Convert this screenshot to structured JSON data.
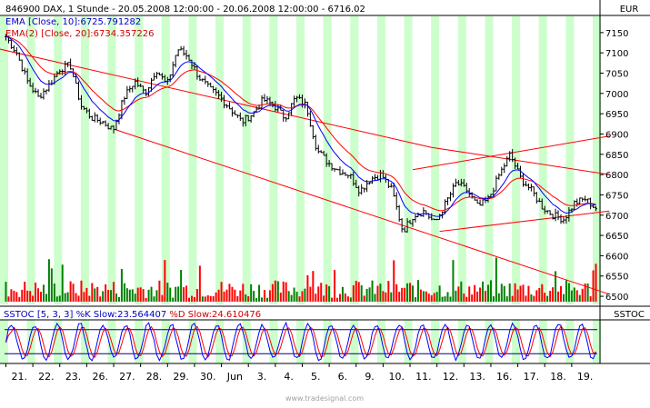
{
  "header": {
    "title": "846900 DAX, 1 Stunde - 20.05.2008 12:00:00 - 20.06.2008 12:00:00 - 6716.02",
    "currency": "EUR"
  },
  "indicators": {
    "ema10": "EMA [Close, 10]:6725.791282",
    "ema20": "EMA(2) [Close, 20]:6734.357226",
    "stoch_prefix": "SSTOC [5, 3, 3] ",
    "stoch_k": "%K Slow:23.564407",
    "stoch_d": " %D Slow:24.610476",
    "stoch_panel": "SSTOC"
  },
  "footer": {
    "watermark": "www.tradesignal.com"
  },
  "colors": {
    "background": "#ffffff",
    "day_band": "#ccffcc",
    "price": "#000000",
    "ema10": "#0000ff",
    "ema20": "#ff0000",
    "channel": "#ff0000",
    "stoch_k": "#0000ff",
    "stoch_d": "#ff0000",
    "volume_up": "#008000",
    "volume_down": "#ff0000",
    "label_blue": "#0000c0"
  },
  "chart_data": {
    "type": "line",
    "x_labels": [
      "21.",
      "22.",
      "23.",
      "26.",
      "27.",
      "28.",
      "29.",
      "30.",
      "Jun",
      "3.",
      "4.",
      "5.",
      "6.",
      "9.",
      "10.",
      "11.",
      "12.",
      "13.",
      "16.",
      "17.",
      "18.",
      "19."
    ],
    "y_ticks": [
      7150,
      7100,
      7050,
      7000,
      6950,
      6900,
      6850,
      6800,
      6750,
      6700,
      6650,
      6600,
      6550,
      6500
    ],
    "ylim": [
      6480,
      7190
    ],
    "close_anchors": [
      7140,
      7100,
      7030,
      6990,
      7020,
      7060,
      7070,
      6970,
      6940,
      6930,
      6910,
      6990,
      7030,
      7000,
      7060,
      7020,
      7110,
      7090,
      7040,
      7010,
      6990,
      6960,
      6930,
      6950,
      6985,
      6970,
      6940,
      6990,
      6970,
      6860,
      6830,
      6810,
      6800,
      6760,
      6790,
      6800,
      6760,
      6660,
      6700,
      6710,
      6680,
      6730,
      6780,
      6760,
      6720,
      6740,
      6800,
      6850,
      6790,
      6760,
      6720,
      6700,
      6690,
      6730,
      6740,
      6716
    ],
    "channels": [
      {
        "name": "down_upper",
        "points": [
          [
            "20.05 12:00",
            7115
          ],
          [
            "11.06 16:00",
            6867
          ],
          [
            "20.06 12:00",
            6800
          ]
        ]
      },
      {
        "name": "down_lower",
        "points": [
          [
            "27.05 09:00",
            6910
          ],
          [
            "20.06 12:00",
            6505
          ]
        ]
      },
      {
        "name": "up_upper",
        "points": [
          [
            "11.06 09:00",
            6812
          ],
          [
            "20.06 12:00",
            6895
          ]
        ]
      },
      {
        "name": "up_lower",
        "points": [
          [
            "12.06 09:00",
            6660
          ],
          [
            "20.06 12:00",
            6710
          ]
        ]
      }
    ],
    "stochastic": {
      "levels": [
        20,
        80
      ],
      "last_k": 23.564407,
      "last_d": 24.610476
    }
  }
}
